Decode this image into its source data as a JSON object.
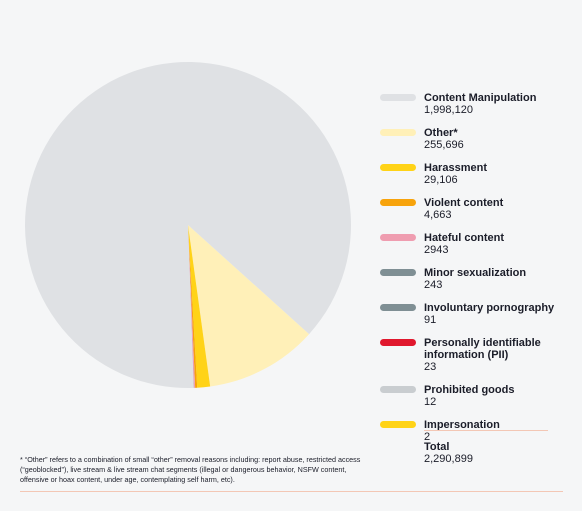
{
  "chart_data": {
    "type": "pie",
    "slices": [
      {
        "label": "Content Manipulation",
        "value_text": "1,998,120",
        "value": 1998120,
        "color": "#dfe1e4"
      },
      {
        "label": "Other*",
        "value_text": "255,696",
        "value": 255696,
        "color": "#fff0b8"
      },
      {
        "label": "Harassment",
        "value_text": "29,106",
        "value": 29106,
        "color": "#ffd317"
      },
      {
        "label": "Violent content",
        "value_text": "4,663",
        "value": 4663,
        "color": "#f7a30c"
      },
      {
        "label": "Hateful content",
        "value_text": "2943",
        "value": 2943,
        "color": "#ef9db0"
      },
      {
        "label": "Minor sexualization",
        "value_text": "243",
        "value": 243,
        "color": "#7f8f94"
      },
      {
        "label": "Involuntary pornography",
        "value_text": "91",
        "value": 91,
        "color": "#7f8f94"
      },
      {
        "label": "Personally identifiable information (PII)",
        "value_text": "23",
        "value": 23,
        "color": "#e0182d"
      },
      {
        "label": "Prohibited goods",
        "value_text": "12",
        "value": 12,
        "color": "#c9cdd0"
      },
      {
        "label": "Impersonation",
        "value_text": "2",
        "value": 2,
        "color": "#ffd317"
      }
    ],
    "total_label": "Total",
    "total_value": "2,290,899",
    "footnote": "* “Other” refers to a combination of small “other” removal reasons including: report abuse, restricted access (“geoblocked”), live stream & live stream chat segments (illegal or dangerous behavior, NSFW content, offensive or hoax content, under age, contemplating self harm, etc)."
  }
}
